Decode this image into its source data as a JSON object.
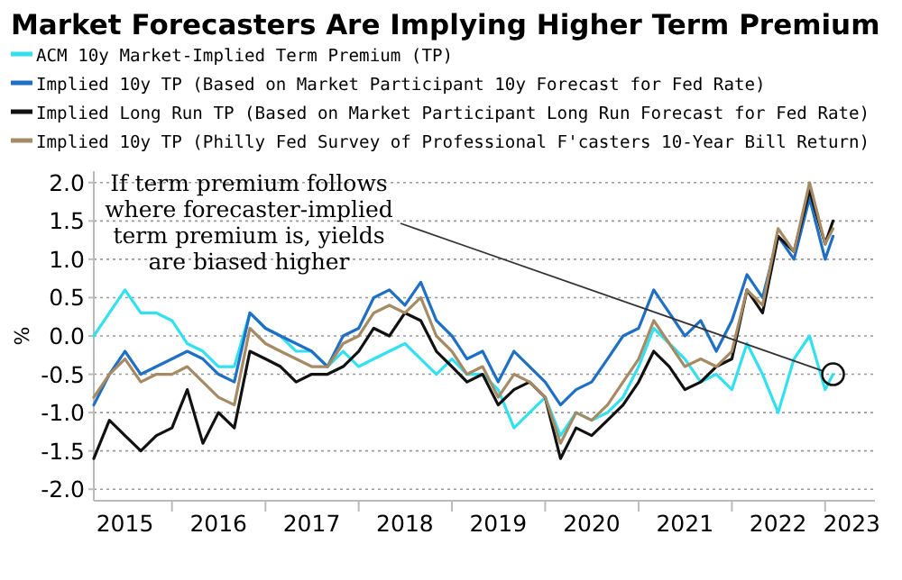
{
  "chart_data": {
    "type": "line",
    "title": "Market Forecasters Are Implying Higher Term Premium",
    "ylabel": "%",
    "x": [
      "2015-03",
      "2015-05",
      "2015-07",
      "2015-09",
      "2015-11",
      "2016-01",
      "2016-03",
      "2016-05",
      "2016-07",
      "2016-09",
      "2016-11",
      "2017-01",
      "2017-03",
      "2017-05",
      "2017-07",
      "2017-09",
      "2017-11",
      "2018-01",
      "2018-03",
      "2018-05",
      "2018-07",
      "2018-09",
      "2018-11",
      "2019-01",
      "2019-03",
      "2019-05",
      "2019-07",
      "2019-09",
      "2019-11",
      "2020-01",
      "2020-03",
      "2020-05",
      "2020-07",
      "2020-09",
      "2020-11",
      "2021-01",
      "2021-03",
      "2021-05",
      "2021-07",
      "2021-09",
      "2021-11",
      "2022-01",
      "2022-03",
      "2022-05",
      "2022-07",
      "2022-09",
      "2022-11",
      "2023-01",
      "2023-02"
    ],
    "series": [
      {
        "name": "ACM 10y Market-Implied Term Premium (TP)",
        "color": "#33e0f0",
        "values": [
          0.0,
          0.3,
          0.6,
          0.3,
          0.3,
          0.2,
          -0.1,
          -0.2,
          -0.4,
          -0.4,
          0.3,
          0.1,
          0.0,
          -0.2,
          -0.2,
          -0.4,
          -0.2,
          -0.4,
          -0.3,
          -0.2,
          -0.1,
          -0.3,
          -0.5,
          -0.3,
          -0.5,
          -0.5,
          -0.7,
          -1.2,
          -1.0,
          -0.8,
          -1.3,
          -1.0,
          -1.1,
          -1.0,
          -0.8,
          -0.4,
          0.1,
          -0.1,
          -0.3,
          -0.6,
          -0.5,
          -0.7,
          -0.1,
          -0.5,
          -1.0,
          -0.3,
          0.0,
          -0.7,
          -0.5
        ]
      },
      {
        "name": "Implied 10y TP (Based on Market Participant 10y Forecast for Fed Rate)",
        "color": "#1f6fc5",
        "values": [
          -0.9,
          -0.5,
          -0.2,
          -0.5,
          -0.4,
          -0.3,
          -0.2,
          -0.3,
          -0.5,
          -0.6,
          0.3,
          0.1,
          0.0,
          -0.1,
          -0.2,
          -0.4,
          0.0,
          0.1,
          0.5,
          0.6,
          0.4,
          0.7,
          0.2,
          0.0,
          -0.3,
          -0.2,
          -0.6,
          -0.2,
          -0.4,
          -0.6,
          -0.9,
          -0.7,
          -0.6,
          -0.3,
          0.0,
          0.1,
          0.6,
          0.3,
          0.0,
          0.2,
          -0.2,
          0.2,
          0.8,
          0.5,
          1.3,
          1.0,
          1.8,
          1.0,
          1.3
        ]
      },
      {
        "name": "Implied Long Run TP (Based on Market Participant Long Run Forecast for Fed Rate)",
        "color": "#111111",
        "values": [
          -1.6,
          -1.1,
          -1.3,
          -1.5,
          -1.3,
          -1.2,
          -0.7,
          -1.4,
          -1.0,
          -1.2,
          -0.2,
          -0.3,
          -0.4,
          -0.6,
          -0.5,
          -0.5,
          -0.4,
          -0.2,
          0.1,
          0.0,
          0.3,
          0.2,
          -0.2,
          -0.4,
          -0.6,
          -0.5,
          -0.9,
          -0.7,
          -0.6,
          -0.8,
          -1.6,
          -1.2,
          -1.3,
          -1.1,
          -0.9,
          -0.6,
          -0.2,
          -0.4,
          -0.7,
          -0.6,
          -0.4,
          -0.3,
          0.6,
          0.3,
          1.3,
          1.1,
          1.9,
          1.2,
          1.5
        ]
      },
      {
        "name": "Implied 10y TP (Philly Fed Survey of Professional F'casters 10-Year Bill Return)",
        "color": "#a68a64",
        "values": [
          -0.8,
          -0.5,
          -0.3,
          -0.6,
          -0.5,
          -0.5,
          -0.4,
          -0.6,
          -0.8,
          -0.9,
          0.1,
          -0.1,
          -0.2,
          -0.3,
          -0.4,
          -0.4,
          -0.1,
          0.0,
          0.3,
          0.4,
          0.3,
          0.5,
          0.0,
          -0.2,
          -0.5,
          -0.4,
          -0.8,
          -0.5,
          -0.6,
          -0.8,
          -1.4,
          -1.0,
          -1.1,
          -0.9,
          -0.6,
          -0.3,
          0.2,
          -0.1,
          -0.4,
          -0.3,
          -0.4,
          -0.2,
          0.6,
          0.4,
          1.4,
          1.1,
          2.0,
          1.2,
          1.4
        ]
      }
    ],
    "xlim": [
      "2015-03-01",
      "2023-07-15"
    ],
    "xticks": [
      {
        "value": "2015-07-01",
        "label": "2015"
      },
      {
        "value": "2016-01-01",
        "label": null
      },
      {
        "value": "2016-07-01",
        "label": "2016"
      },
      {
        "value": "2017-01-01",
        "label": null
      },
      {
        "value": "2017-07-01",
        "label": "2017"
      },
      {
        "value": "2018-01-01",
        "label": null
      },
      {
        "value": "2018-07-01",
        "label": "2018"
      },
      {
        "value": "2019-01-01",
        "label": null
      },
      {
        "value": "2019-07-01",
        "label": "2019"
      },
      {
        "value": "2020-01-01",
        "label": null
      },
      {
        "value": "2020-07-01",
        "label": "2020"
      },
      {
        "value": "2021-01-01",
        "label": null
      },
      {
        "value": "2021-07-01",
        "label": "2021"
      },
      {
        "value": "2022-01-01",
        "label": null
      },
      {
        "value": "2022-07-01",
        "label": "2022"
      },
      {
        "value": "2023-01-01",
        "label": null
      },
      {
        "value": "2023-04-15",
        "label": "2023"
      }
    ],
    "ylim": [
      -2.15,
      2.15
    ],
    "yticks": [
      {
        "value": -2,
        "label": "-2.0"
      },
      {
        "value": -1.5,
        "label": "-1.5"
      },
      {
        "value": -1,
        "label": "-1.0"
      },
      {
        "value": -0.5,
        "label": "-0.5"
      },
      {
        "value": 0,
        "label": "0.0"
      },
      {
        "value": 0.5,
        "label": "0.5"
      },
      {
        "value": 1,
        "label": "1.0"
      },
      {
        "value": 1.5,
        "label": "1.5"
      },
      {
        "value": 2,
        "label": "2.0"
      }
    ],
    "grid": "y",
    "legend": "top",
    "annotations": [
      {
        "text": "If term premium follows\nwhere forecaster-implied\nterm premium is, yields\nare biased higher",
        "x": "2023-02",
        "y": -0.5
      }
    ]
  }
}
